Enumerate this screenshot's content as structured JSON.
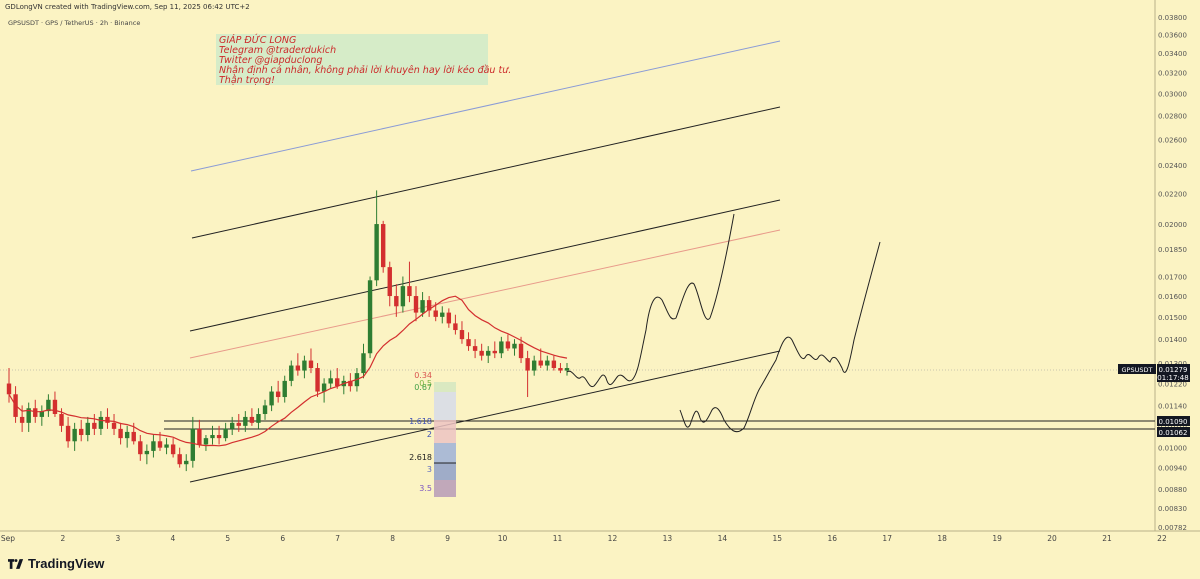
{
  "header": {
    "created_line": "GDLongVN created with TradingView.com, Sep 11, 2025 06:42 UTC+2",
    "symbol_line": "GPSUSDT · GPS / TetherUS · 2h · Binance"
  },
  "note": {
    "lines": [
      "GIÁP ĐỨC LONG",
      "Telegram @traderdukich",
      "Twitter @giapduclong",
      "Nhận định cá nhân, không phải lời khuyên hay lời kéo đầu tư.",
      "Thận trọng!"
    ]
  },
  "footer": {
    "brand": "TradingView"
  },
  "colors": {
    "background": "#fbf3c3",
    "up": "#2e7d32",
    "down": "#d32f2f",
    "ma": "#d32f2f",
    "channel": "#222222",
    "channel_blue": "#8a9bd6",
    "channel_red": "#e89a8a",
    "price_label_bg": "#131722"
  },
  "chart_data": {
    "type": "candlestick",
    "price_axis_ticks": [
      "0.03800",
      "0.03600",
      "0.03400",
      "0.03200",
      "0.03000",
      "0.02800",
      "0.02600",
      "0.02400",
      "0.02200",
      "0.02000",
      "0.01850",
      "0.01700",
      "0.01600",
      "0.01500",
      "0.01400",
      "0.01300",
      "0.01220",
      "0.01140",
      "0.01070",
      "0.01000",
      "0.00940",
      "0.00880",
      "0.00830",
      "0.00782"
    ],
    "price_axis_log": true,
    "time_axis_ticks": [
      "Sep",
      "2",
      "3",
      "4",
      "5",
      "6",
      "7",
      "8",
      "9",
      "10",
      "11",
      "12",
      "13",
      "14",
      "15",
      "16",
      "17",
      "18",
      "19",
      "20",
      "21",
      "22"
    ],
    "last_price": {
      "symbol": "GPSUSDT",
      "value": "0.01279",
      "countdown": "01:17:48"
    },
    "horizontal_levels": [
      {
        "value": "0.01090"
      },
      {
        "value": "0.01062"
      }
    ],
    "fib_levels": [
      {
        "label": "0.34",
        "color": "#d9534f"
      },
      {
        "label": "0.5",
        "color": "#7cb342"
      },
      {
        "label": "0.67",
        "color": "#43a047"
      },
      {
        "label": "1.618",
        "color": "#3f51b5"
      },
      {
        "label": "2",
        "color": "#3f51b5"
      },
      {
        "label": "2.618",
        "color": "#222222"
      },
      {
        "label": "3",
        "color": "#5c6bc0"
      },
      {
        "label": "3.5",
        "color": "#7e57c2"
      }
    ],
    "candles": [
      [
        0.0122,
        0.0128,
        0.0115,
        0.0118
      ],
      [
        0.0118,
        0.0121,
        0.0108,
        0.011
      ],
      [
        0.011,
        0.0114,
        0.0105,
        0.0108
      ],
      [
        0.0108,
        0.0115,
        0.0105,
        0.0113
      ],
      [
        0.0113,
        0.0116,
        0.0108,
        0.011
      ],
      [
        0.011,
        0.0114,
        0.0107,
        0.0112
      ],
      [
        0.0112,
        0.0118,
        0.011,
        0.0116
      ],
      [
        0.0116,
        0.0119,
        0.011,
        0.0111
      ],
      [
        0.0111,
        0.0113,
        0.0105,
        0.0107
      ],
      [
        0.0107,
        0.011,
        0.01,
        0.0102
      ],
      [
        0.0102,
        0.0108,
        0.0099,
        0.0106
      ],
      [
        0.0106,
        0.0109,
        0.0102,
        0.0104
      ],
      [
        0.0104,
        0.011,
        0.0102,
        0.0108
      ],
      [
        0.0108,
        0.0111,
        0.0104,
        0.0106
      ],
      [
        0.0106,
        0.0112,
        0.0104,
        0.011
      ],
      [
        0.011,
        0.0113,
        0.0106,
        0.0108
      ],
      [
        0.0108,
        0.0111,
        0.0104,
        0.0106
      ],
      [
        0.0106,
        0.0108,
        0.0101,
        0.0103
      ],
      [
        0.0103,
        0.0107,
        0.01,
        0.0105
      ],
      [
        0.0105,
        0.0108,
        0.0101,
        0.0102
      ],
      [
        0.0102,
        0.0104,
        0.0096,
        0.0098
      ],
      [
        0.0098,
        0.0101,
        0.0095,
        0.0099
      ],
      [
        0.0099,
        0.0104,
        0.0097,
        0.0102
      ],
      [
        0.0102,
        0.0105,
        0.0099,
        0.01
      ],
      [
        0.01,
        0.0103,
        0.0098,
        0.0101
      ],
      [
        0.0101,
        0.0103,
        0.0097,
        0.0098
      ],
      [
        0.0098,
        0.01,
        0.0094,
        0.0095
      ],
      [
        0.0095,
        0.0098,
        0.0093,
        0.0096
      ],
      [
        0.0096,
        0.011,
        0.0094,
        0.0106
      ],
      [
        0.0106,
        0.0109,
        0.01,
        0.0101
      ],
      [
        0.0101,
        0.0104,
        0.0099,
        0.0103
      ],
      [
        0.0103,
        0.0107,
        0.0101,
        0.0104
      ],
      [
        0.0104,
        0.0107,
        0.0101,
        0.0103
      ],
      [
        0.0103,
        0.0108,
        0.0102,
        0.0106
      ],
      [
        0.0106,
        0.011,
        0.0104,
        0.0108
      ],
      [
        0.0108,
        0.0111,
        0.0105,
        0.0107
      ],
      [
        0.0107,
        0.0112,
        0.0105,
        0.011
      ],
      [
        0.011,
        0.0113,
        0.0107,
        0.0108
      ],
      [
        0.0108,
        0.0113,
        0.0106,
        0.0111
      ],
      [
        0.0111,
        0.0116,
        0.0109,
        0.0114
      ],
      [
        0.0114,
        0.0121,
        0.0112,
        0.0119
      ],
      [
        0.0119,
        0.0123,
        0.0115,
        0.0117
      ],
      [
        0.0117,
        0.0125,
        0.0115,
        0.0123
      ],
      [
        0.0123,
        0.0131,
        0.0121,
        0.0129
      ],
      [
        0.0129,
        0.0134,
        0.0125,
        0.0127
      ],
      [
        0.0127,
        0.0133,
        0.0124,
        0.0131
      ],
      [
        0.0131,
        0.0136,
        0.0126,
        0.0128
      ],
      [
        0.0128,
        0.013,
        0.0117,
        0.0119
      ],
      [
        0.0119,
        0.0124,
        0.0115,
        0.0122
      ],
      [
        0.0122,
        0.0127,
        0.012,
        0.0124
      ],
      [
        0.0124,
        0.0128,
        0.012,
        0.0121
      ],
      [
        0.0121,
        0.0125,
        0.0118,
        0.0123
      ],
      [
        0.0123,
        0.0126,
        0.0119,
        0.0121
      ],
      [
        0.0121,
        0.0128,
        0.0119,
        0.0126
      ],
      [
        0.0126,
        0.0138,
        0.0124,
        0.0134
      ],
      [
        0.0134,
        0.017,
        0.0132,
        0.0168
      ],
      [
        0.0168,
        0.0222,
        0.0165,
        0.02
      ],
      [
        0.02,
        0.0202,
        0.0172,
        0.0175
      ],
      [
        0.0175,
        0.0178,
        0.0155,
        0.016
      ],
      [
        0.016,
        0.0166,
        0.015,
        0.0155
      ],
      [
        0.0155,
        0.017,
        0.0152,
        0.0165
      ],
      [
        0.0165,
        0.0178,
        0.0157,
        0.016
      ],
      [
        0.016,
        0.0165,
        0.0148,
        0.0152
      ],
      [
        0.0152,
        0.0162,
        0.015,
        0.0158
      ],
      [
        0.0158,
        0.016,
        0.015,
        0.0153
      ],
      [
        0.0153,
        0.0157,
        0.0148,
        0.015
      ],
      [
        0.015,
        0.0155,
        0.0147,
        0.0152
      ],
      [
        0.0152,
        0.0154,
        0.0145,
        0.0147
      ],
      [
        0.0147,
        0.0151,
        0.0142,
        0.0144
      ],
      [
        0.0144,
        0.0148,
        0.0138,
        0.014
      ],
      [
        0.014,
        0.0143,
        0.0135,
        0.0137
      ],
      [
        0.0137,
        0.014,
        0.0132,
        0.0135
      ],
      [
        0.0135,
        0.0138,
        0.0131,
        0.0133
      ],
      [
        0.0133,
        0.0137,
        0.013,
        0.0135
      ],
      [
        0.0135,
        0.0139,
        0.0132,
        0.0134
      ],
      [
        0.0134,
        0.0141,
        0.0132,
        0.0139
      ],
      [
        0.0139,
        0.0142,
        0.0135,
        0.0136
      ],
      [
        0.0136,
        0.014,
        0.0133,
        0.0138
      ],
      [
        0.0138,
        0.0141,
        0.013,
        0.0132
      ],
      [
        0.0132,
        0.0135,
        0.0117,
        0.0127
      ],
      [
        0.0127,
        0.0133,
        0.0125,
        0.0131
      ],
      [
        0.0131,
        0.0136,
        0.0128,
        0.0129
      ],
      [
        0.0129,
        0.0133,
        0.0127,
        0.0131
      ],
      [
        0.0131,
        0.0133,
        0.0127,
        0.0128
      ],
      [
        0.0128,
        0.013,
        0.0126,
        0.0127
      ],
      [
        0.0127,
        0.013,
        0.0125,
        0.0128
      ]
    ]
  }
}
